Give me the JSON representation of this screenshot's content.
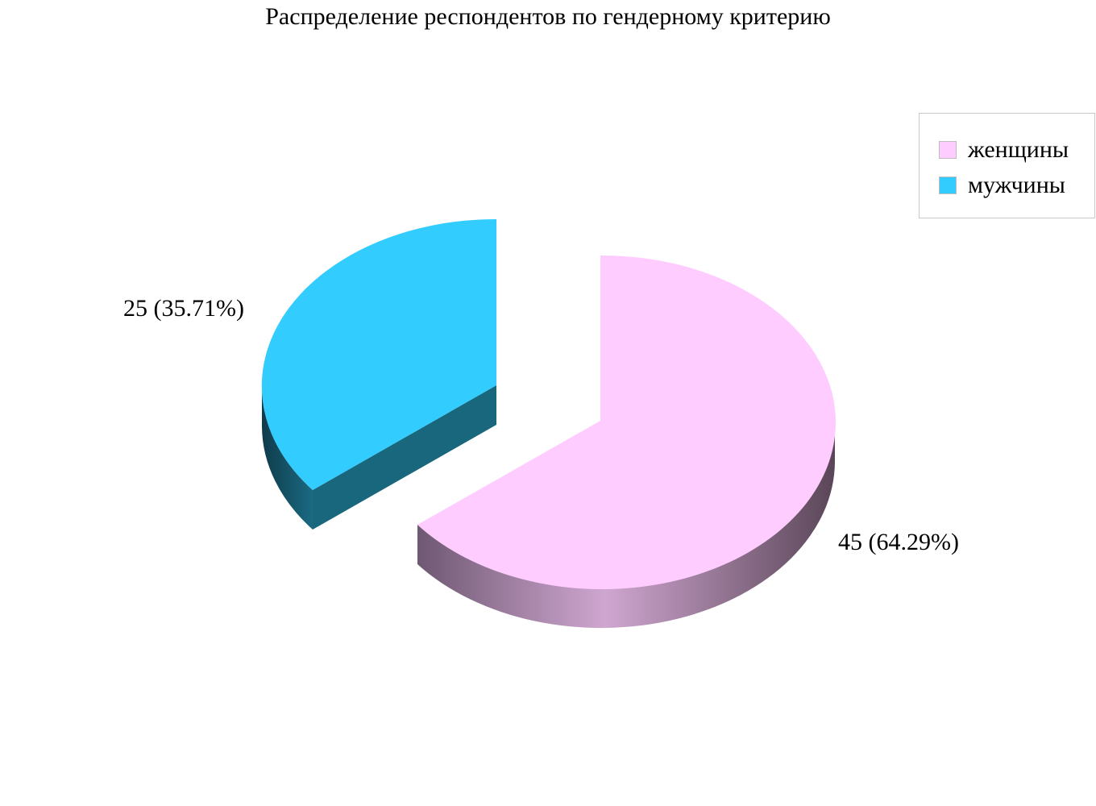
{
  "chart_data": {
    "type": "pie",
    "title": "Распределение респондентов по гендерному критерию",
    "slices": [
      {
        "name": "женщины",
        "value": 45,
        "label": "45 (64.29%)",
        "color": "#ffccff"
      },
      {
        "name": "мужчины",
        "value": 25,
        "label": "25 (35.71%)",
        "color": "#33ccff"
      }
    ],
    "legend": {
      "position": "top-right"
    },
    "style": "3d-exploded"
  }
}
